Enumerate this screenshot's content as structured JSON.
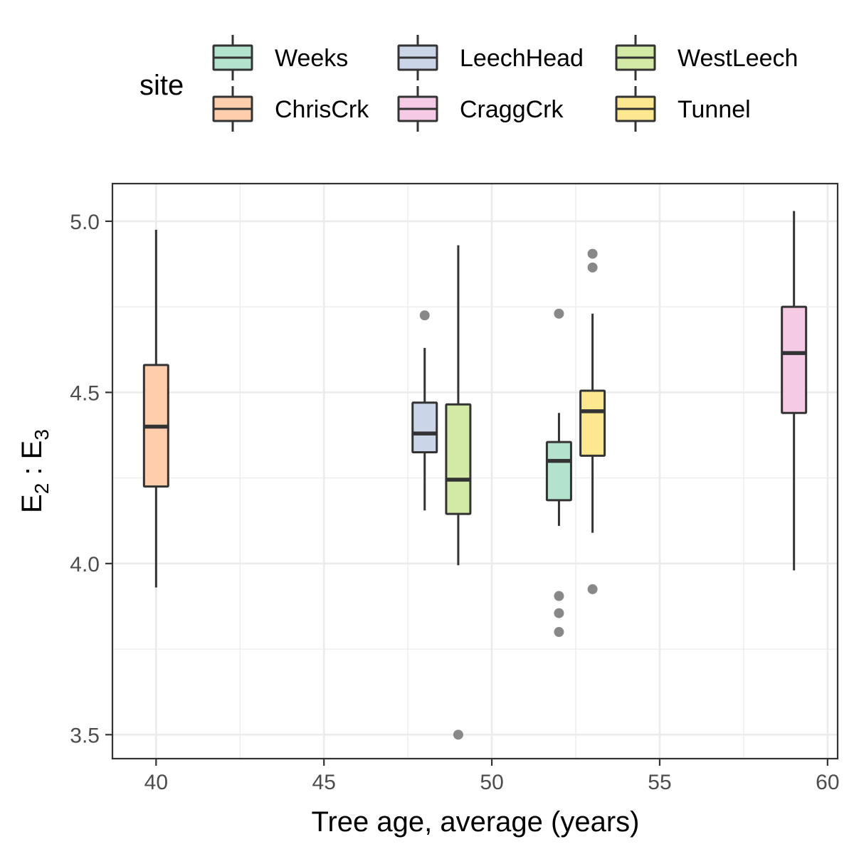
{
  "chart_data": {
    "type": "boxplot",
    "xlabel": "Tree age, average (years)",
    "ylabel": {
      "main": "E",
      "sub1": "2",
      "sep": " : ",
      "main2": "E",
      "sub2": "3"
    },
    "xlim": [
      38.7,
      60.3
    ],
    "ylim": [
      3.43,
      5.11
    ],
    "xticks": [
      40,
      45,
      50,
      55,
      60
    ],
    "yticks": [
      3.5,
      4.0,
      4.5,
      5.0
    ],
    "ytick_labels": [
      "3.5",
      "4.0",
      "4.5",
      "5.0"
    ],
    "grid": true,
    "legend": {
      "title": "site",
      "placement": "top",
      "entries": [
        "Weeks",
        "LeechHead",
        "WestLeech",
        "ChrisCrk",
        "CraggCrk",
        "Tunnel"
      ]
    },
    "colors": {
      "Weeks": "#b3e2cd",
      "LeechHead": "#cbd5e8",
      "WestLeech": "#d3eaa6",
      "ChrisCrk": "#fdcdac",
      "CraggCrk": "#f4cae4",
      "Tunnel": "#fde88f",
      "outline": "#333333",
      "outlier": "#888888"
    },
    "series": [
      {
        "name": "ChrisCrk",
        "x": 40,
        "whisker_low": 3.93,
        "q1": 4.225,
        "median": 4.4,
        "q3": 4.58,
        "whisker_high": 4.975,
        "outliers": []
      },
      {
        "name": "LeechHead",
        "x": 48,
        "whisker_low": 4.155,
        "q1": 4.325,
        "median": 4.38,
        "q3": 4.47,
        "whisker_high": 4.63,
        "outliers": [
          4.725
        ]
      },
      {
        "name": "WestLeech",
        "x": 49,
        "whisker_low": 3.995,
        "q1": 4.145,
        "median": 4.245,
        "q3": 4.465,
        "whisker_high": 4.93,
        "outliers": [
          3.5
        ]
      },
      {
        "name": "Weeks",
        "x": 52,
        "whisker_low": 4.11,
        "q1": 4.185,
        "median": 4.3,
        "q3": 4.355,
        "whisker_high": 4.44,
        "outliers": [
          4.73,
          3.905,
          3.855,
          3.8
        ]
      },
      {
        "name": "Tunnel",
        "x": 53,
        "whisker_low": 4.09,
        "q1": 4.315,
        "median": 4.445,
        "q3": 4.505,
        "whisker_high": 4.73,
        "outliers": [
          4.905,
          4.865,
          3.925
        ]
      },
      {
        "name": "CraggCrk",
        "x": 59,
        "whisker_low": 3.98,
        "q1": 4.44,
        "median": 4.615,
        "q3": 4.75,
        "whisker_high": 5.03,
        "outliers": []
      }
    ]
  }
}
